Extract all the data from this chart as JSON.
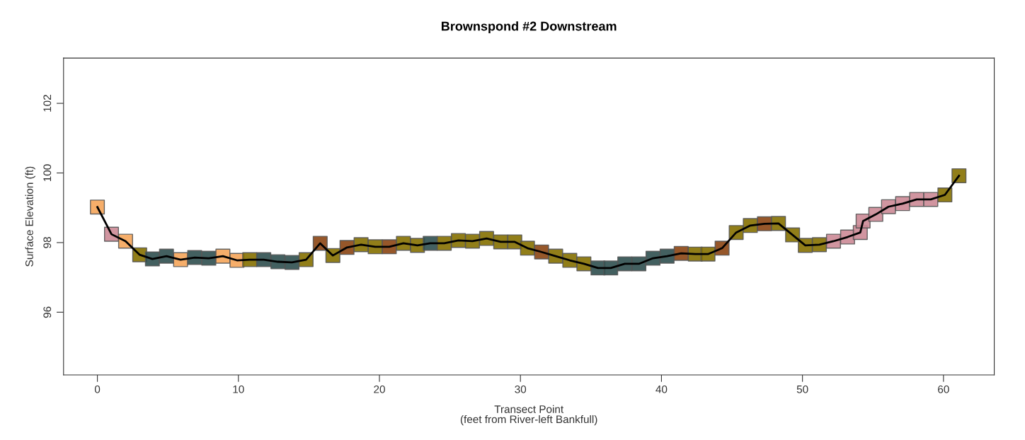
{
  "chart_data": {
    "type": "scatter",
    "title": "Brownspond #2 Downstream",
    "xlabel": "Transect Point\n(feet from River-left Bankfull)",
    "ylabel": "Surface Elevation (ft)",
    "xlim": [
      -2.4,
      63.6
    ],
    "ylim": [
      94.2,
      103.3
    ],
    "xticks": [
      0,
      10,
      20,
      30,
      40,
      50,
      60
    ],
    "yticks": [
      96,
      98,
      100,
      102
    ],
    "grid": false,
    "legend": false,
    "series": [
      {
        "type": "line",
        "color": "#000000",
        "marker": "none",
        "x": [
          0.0,
          1.0,
          2.0,
          3.0,
          3.9,
          4.9,
          5.9,
          6.9,
          7.9,
          8.9,
          9.9,
          10.8,
          11.8,
          12.8,
          13.8,
          14.8,
          15.8,
          16.7,
          17.7,
          18.7,
          19.7,
          20.7,
          21.7,
          22.7,
          23.6,
          24.6,
          25.6,
          26.6,
          27.6,
          28.6,
          29.6,
          30.5,
          31.5,
          32.5,
          33.5,
          34.5,
          35.5,
          36.4,
          37.4,
          38.4,
          39.4,
          40.4,
          41.4,
          42.4,
          43.3,
          44.3,
          45.3,
          46.3,
          47.3,
          48.3,
          49.3,
          50.2,
          51.2,
          52.2,
          53.2,
          54.1,
          54.3,
          55.2,
          56.1,
          57.1,
          58.1,
          59.1,
          60.1,
          61.1
        ],
        "values": [
          99.02,
          98.24,
          98.04,
          97.65,
          97.53,
          97.61,
          97.51,
          97.57,
          97.55,
          97.61,
          97.49,
          97.51,
          97.51,
          97.45,
          97.43,
          97.51,
          97.98,
          97.63,
          97.86,
          97.94,
          97.88,
          97.88,
          97.98,
          97.92,
          97.98,
          97.98,
          98.06,
          98.04,
          98.12,
          98.02,
          98.02,
          97.84,
          97.73,
          97.61,
          97.49,
          97.39,
          97.27,
          97.27,
          97.39,
          97.39,
          97.55,
          97.61,
          97.69,
          97.67,
          97.67,
          97.84,
          98.29,
          98.49,
          98.54,
          98.55,
          98.22,
          97.92,
          97.94,
          98.04,
          98.16,
          98.29,
          98.62,
          98.81,
          99.03,
          99.12,
          99.24,
          99.24,
          99.37,
          99.92
        ]
      },
      {
        "marker": "square",
        "x": [
          0.0,
          1.0,
          2.0,
          3.0,
          3.9,
          4.9,
          5.9,
          6.9,
          7.9,
          8.9,
          9.9,
          10.8,
          11.8,
          12.8,
          13.8,
          14.8,
          15.8,
          16.7,
          17.7,
          18.7,
          19.7,
          20.7,
          21.7,
          22.7,
          23.6,
          24.6,
          25.6,
          26.6,
          27.6,
          28.6,
          29.6,
          30.5,
          31.5,
          32.5,
          33.5,
          34.5,
          35.5,
          36.4,
          37.4,
          38.4,
          39.4,
          40.4,
          41.4,
          42.4,
          43.3,
          44.3,
          45.3,
          46.3,
          47.3,
          48.3,
          49.3,
          50.2,
          51.2,
          52.2,
          53.2,
          54.1,
          54.3,
          55.2,
          56.1,
          57.1,
          58.1,
          59.1,
          60.1,
          61.1
        ],
        "values": [
          99.02,
          98.24,
          98.04,
          97.65,
          97.53,
          97.61,
          97.51,
          97.57,
          97.55,
          97.61,
          97.49,
          97.51,
          97.51,
          97.45,
          97.43,
          97.51,
          97.98,
          97.63,
          97.86,
          97.94,
          97.88,
          97.88,
          97.98,
          97.92,
          97.98,
          97.98,
          98.06,
          98.04,
          98.12,
          98.02,
          98.02,
          97.84,
          97.73,
          97.61,
          97.49,
          97.39,
          97.27,
          97.27,
          97.39,
          97.39,
          97.55,
          97.61,
          97.69,
          97.67,
          97.67,
          97.84,
          98.29,
          98.49,
          98.54,
          98.55,
          98.22,
          97.92,
          97.94,
          98.04,
          98.16,
          98.29,
          98.62,
          98.81,
          99.03,
          99.12,
          99.24,
          99.24,
          99.37,
          99.92
        ],
        "colors": [
          "#f5a55a",
          "#cc8a96",
          "#f5a55a",
          "#857000",
          "#2f4f4f",
          "#2f4f4f",
          "#f5a55a",
          "#2f4f4f",
          "#2f4f4f",
          "#f5a55a",
          "#f5a55a",
          "#857000",
          "#2f4f4f",
          "#2f4f4f",
          "#2f4f4f",
          "#857000",
          "#8b4513",
          "#857000",
          "#8b4513",
          "#857000",
          "#857000",
          "#8b4513",
          "#857000",
          "#857000",
          "#2f4f4f",
          "#857000",
          "#857000",
          "#857000",
          "#857000",
          "#857000",
          "#857000",
          "#857000",
          "#8b4513",
          "#857000",
          "#857000",
          "#857000",
          "#2f4f4f",
          "#2f4f4f",
          "#2f4f4f",
          "#2f4f4f",
          "#2f4f4f",
          "#2f4f4f",
          "#8b4513",
          "#857000",
          "#857000",
          "#8b4513",
          "#857000",
          "#857000",
          "#8b4513",
          "#857000",
          "#857000",
          "#857000",
          "#857000",
          "#cc8a96",
          "#cc8a96",
          "#cc8a96",
          "#cc8a96",
          "#cc8a96",
          "#cc8a96",
          "#cc8a96",
          "#cc8a96",
          "#cc8a96",
          "#857000",
          "#857000"
        ]
      }
    ]
  }
}
